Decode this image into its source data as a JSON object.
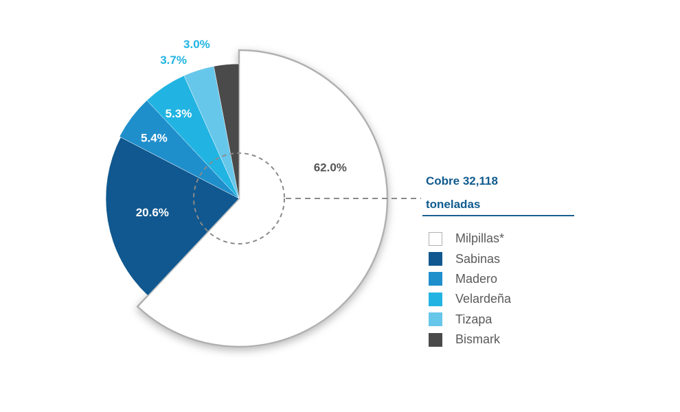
{
  "chart_data": {
    "type": "pie",
    "title": "Cobre 32,118 toneladas",
    "title_lines": [
      "Cobre 32,118",
      "toneladas"
    ],
    "series": [
      {
        "name": "Milpillas*",
        "value": 62.0,
        "label": "62.0%",
        "color": "#ffffff",
        "border": "#b0b0b0",
        "label_color": "#555555"
      },
      {
        "name": "Sabinas",
        "value": 20.6,
        "label": "20.6%",
        "color": "#10588f",
        "label_color": "#ffffff"
      },
      {
        "name": "Madero",
        "value": 5.4,
        "label": "5.4%",
        "color": "#1f8fcc",
        "label_color": "#ffffff"
      },
      {
        "name": "Velardeña",
        "value": 5.3,
        "label": "5.3%",
        "color": "#21b4e2",
        "label_color": "#ffffff"
      },
      {
        "name": "Tizapa",
        "value": 3.7,
        "label": "3.7%",
        "color": "#67c7ea",
        "label_color": "#21b4e2"
      },
      {
        "name": "Bismark",
        "value": 3.0,
        "label": "3.0%",
        "color": "#4a4a4a",
        "label_color": "#21b4e2"
      }
    ],
    "legend_position": "right"
  }
}
